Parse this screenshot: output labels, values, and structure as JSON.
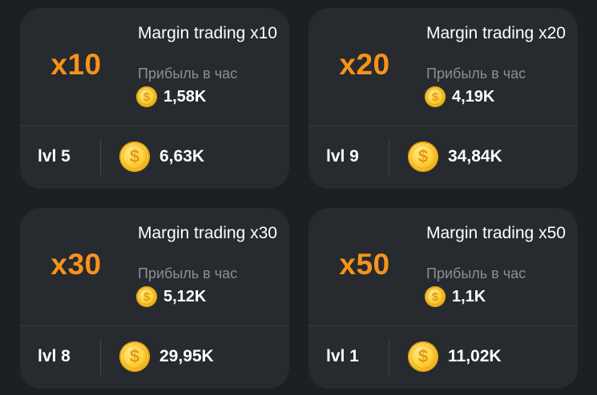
{
  "cards": [
    {
      "multiplier": "x10",
      "name": "Margin trading x10",
      "profit_label": "Прибыль в час",
      "profit": "1,58K",
      "level": "lvl 5",
      "cost": "6,63K",
      "coin_symbol": "$"
    },
    {
      "multiplier": "x20",
      "name": "Margin trading x20",
      "profit_label": "Прибыль в час",
      "profit": "4,19K",
      "level": "lvl 9",
      "cost": "34,84K",
      "coin_symbol": "$"
    },
    {
      "multiplier": "x30",
      "name": "Margin trading x30",
      "profit_label": "Прибыль в час",
      "profit": "5,12K",
      "level": "lvl 8",
      "cost": "29,95K",
      "coin_symbol": "$"
    },
    {
      "multiplier": "x50",
      "name": "Margin trading x50",
      "profit_label": "Прибыль в час",
      "profit": "1,1K",
      "level": "lvl 1",
      "cost": "11,02K",
      "coin_symbol": "$"
    }
  ],
  "colors": {
    "background": "#1c1f24",
    "card": "#272a2f",
    "accent": "#f7931a",
    "muted_text": "#8b8f96",
    "coin": "#ffd23f"
  },
  "icons": {
    "coin": "dollar-coin-icon"
  }
}
